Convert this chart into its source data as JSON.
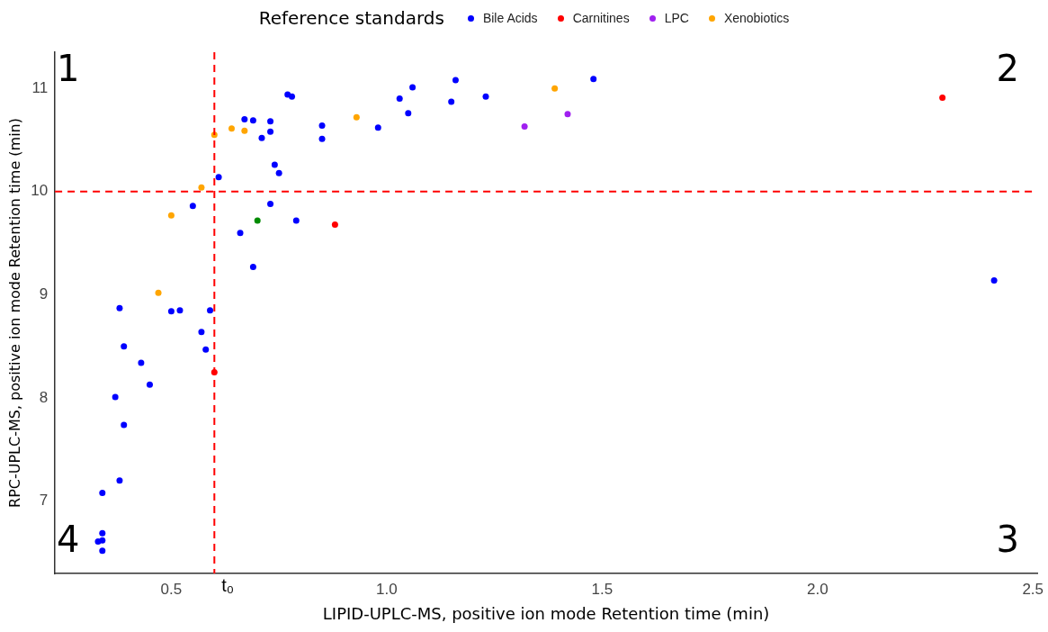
{
  "chart_data": {
    "type": "scatter",
    "xlabel": "LIPID-UPLC-MS, positive ion mode Retention time (min)",
    "ylabel": "RPC-UPLC-MS, positive ion mode Retention time (min)",
    "legend_title": "Reference standards",
    "legend": "top",
    "marker": "circle",
    "grid": false,
    "xlim": [
      0.23,
      2.51
    ],
    "xticks": [
      0.5,
      {
        "value": 1,
        "label": "1.0"
      },
      1.5,
      {
        "value": 2,
        "label": "2.0"
      },
      2.5
    ],
    "ylim": [
      6.3,
      11.35
    ],
    "yticks": [
      7,
      8,
      9,
      10,
      11
    ],
    "series": [
      {
        "name": "Bile Acids",
        "color": "#0000ff",
        "x": [
          0.67,
          0.69,
          0.73,
          0.73,
          0.71,
          0.77,
          0.78,
          0.85,
          0.85,
          0.98,
          1.03,
          0.74,
          0.75,
          0.61,
          0.55,
          0.73,
          0.79,
          0.66,
          0.69,
          1.06,
          1.05,
          1.16,
          1.15,
          1.23,
          1.48,
          2.41,
          0.38,
          0.5,
          0.52,
          0.59,
          0.57,
          0.58,
          0.39,
          0.43,
          0.45,
          0.37,
          0.39,
          0.38,
          0.34,
          0.34,
          0.33,
          0.34,
          0.34
        ],
        "values": [
          10.7,
          10.69,
          10.68,
          10.58,
          10.52,
          10.94,
          10.92,
          10.64,
          10.51,
          10.62,
          10.9,
          10.26,
          10.18,
          10.14,
          9.86,
          9.88,
          9.72,
          9.6,
          9.27,
          11.01,
          10.76,
          11.08,
          10.87,
          10.92,
          11.09,
          9.14,
          8.87,
          8.84,
          8.85,
          8.85,
          8.64,
          8.47,
          8.5,
          8.34,
          8.13,
          8.01,
          7.74,
          7.2,
          7.08,
          6.69,
          6.61,
          6.62,
          6.52
        ]
      },
      {
        "name": "Carnitines",
        "color": "#ff0000",
        "x": [
          0.88,
          0.6,
          2.29
        ],
        "values": [
          9.68,
          8.25,
          10.91
        ]
      },
      {
        "name": "LPC",
        "color": "#a020f0",
        "x": [
          1.32,
          1.42
        ],
        "values": [
          10.63,
          10.75
        ]
      },
      {
        "name": "Xenobiotics",
        "color": "#ffa500",
        "x": [
          0.6,
          0.64,
          0.67,
          0.57,
          0.5,
          0.47,
          0.93,
          1.39
        ],
        "values": [
          10.55,
          10.61,
          10.59,
          10.04,
          9.77,
          9.02,
          10.72,
          11.0
        ]
      },
      {
        "color": "#008b00",
        "x": [
          0.7
        ],
        "values": [
          9.72
        ]
      }
    ],
    "ref_lines": [
      {
        "axis": "x",
        "value": 0.6,
        "label": "t₀",
        "color": "#ff0000",
        "line_style": "dashed"
      },
      {
        "axis": "y",
        "value": 10,
        "color": "#ff0000",
        "line_style": "dashed"
      }
    ],
    "annotations": [
      "1",
      "2",
      "3",
      "4"
    ]
  }
}
